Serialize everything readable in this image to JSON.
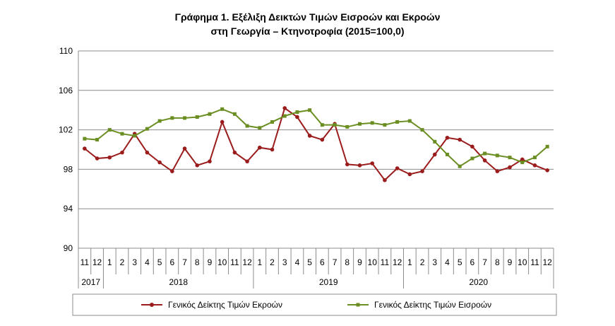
{
  "chart_data": {
    "type": "line",
    "title": "Γράφημα 1. Εξέλιξη Δεικτών Τιμών Εισροών και Εκροών",
    "subtitle": "στη Γεωργία – Κτηνοτροφία (2015=100,0)",
    "ylim": [
      90,
      110
    ],
    "yticks": [
      "90",
      "94",
      "98",
      "102",
      "106",
      "110"
    ],
    "categories": [
      "11",
      "12",
      "1",
      "2",
      "3",
      "4",
      "5",
      "6",
      "7",
      "8",
      "9",
      "10",
      "11",
      "12",
      "1",
      "2",
      "3",
      "4",
      "5",
      "6",
      "7",
      "8",
      "9",
      "10",
      "11",
      "12",
      "1",
      "2",
      "3",
      "4",
      "5",
      "6",
      "7",
      "8",
      "9",
      "10",
      "11",
      "12"
    ],
    "years": [
      {
        "label": "2017",
        "start": 0,
        "end": 1
      },
      {
        "label": "2018",
        "start": 2,
        "end": 13
      },
      {
        "label": "2019",
        "start": 14,
        "end": 25
      },
      {
        "label": "2020",
        "start": 26,
        "end": 37
      }
    ],
    "grid": true,
    "legend_position": "bottom",
    "series": [
      {
        "name": "Γενικός Δείκτης Τιμών Εκροών",
        "color": "#9b1c1c",
        "marker": "circle",
        "values": [
          100.1,
          99.1,
          99.2,
          99.7,
          101.6,
          99.7,
          98.7,
          97.8,
          100.1,
          98.4,
          98.8,
          102.8,
          99.7,
          98.8,
          100.2,
          100.0,
          104.2,
          103.3,
          101.4,
          101.0,
          102.6,
          98.5,
          98.4,
          98.6,
          96.9,
          98.1,
          97.5,
          97.8,
          99.5,
          101.2,
          101.0,
          100.3,
          98.9,
          97.8,
          98.2,
          99.0,
          98.4,
          97.9
        ]
      },
      {
        "name": "Γενικός Δείκτης Τιμών Εισροών",
        "color": "#6b8e23",
        "marker": "square",
        "values": [
          101.1,
          101.0,
          102.0,
          101.6,
          101.4,
          102.1,
          102.9,
          103.2,
          103.2,
          103.3,
          103.6,
          104.1,
          103.6,
          102.4,
          102.2,
          102.8,
          103.4,
          103.8,
          104.0,
          102.5,
          102.5,
          102.3,
          102.6,
          102.7,
          102.5,
          102.8,
          102.9,
          102.0,
          100.8,
          99.5,
          98.3,
          99.1,
          99.6,
          99.4,
          99.2,
          98.7,
          99.2,
          100.3
        ]
      }
    ]
  }
}
